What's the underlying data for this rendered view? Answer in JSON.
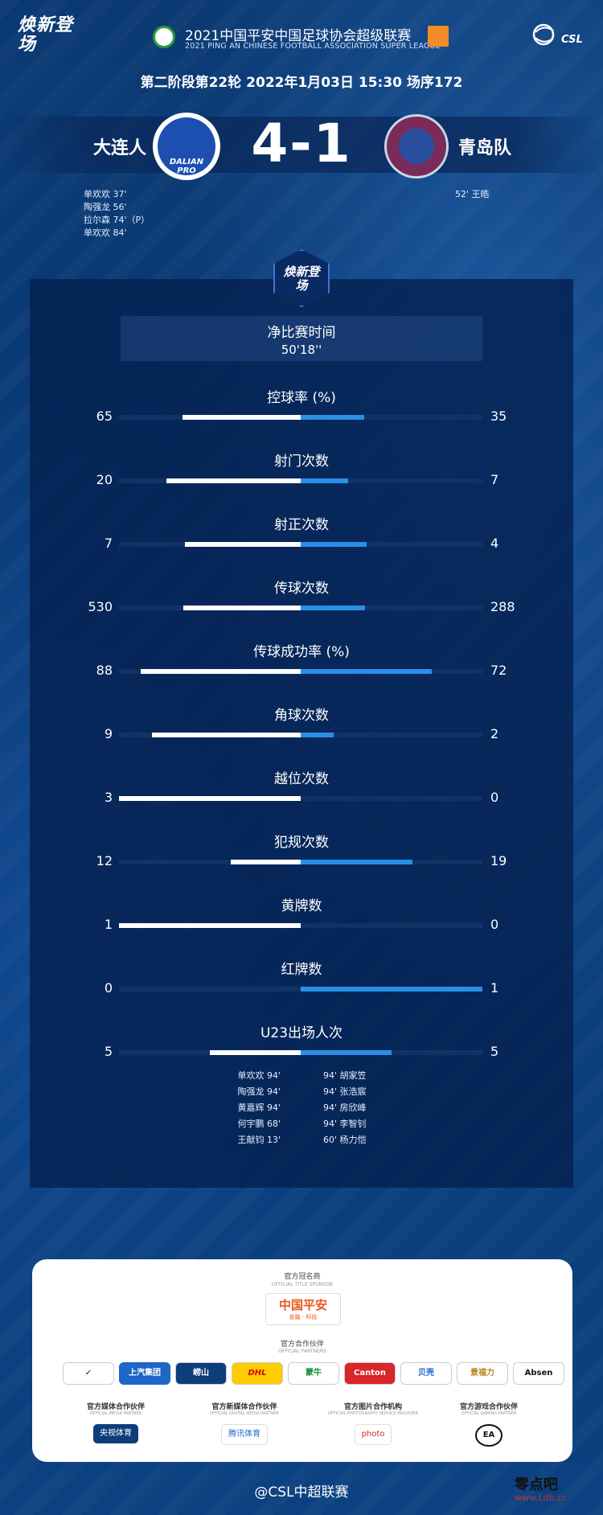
{
  "header": {
    "logo_left": "焕新登场",
    "league_title": "2021中国平安中国足球协会超级联赛",
    "league_subtitle": "2021 PING AN CHINESE FOOTBALL ASSOCIATION SUPER LEAGUE",
    "csl_logo_text": "CSL",
    "match_info": "第二阶段第22轮  2022年1月03日 15:30 场序172"
  },
  "match": {
    "home_team": "大连人",
    "away_team": "青岛队",
    "score": "4-1",
    "home_badge_text": "DALIAN PRO",
    "home_scorers": [
      "单欢欢  37'",
      "陶强龙  56'",
      "拉尔森  74'（P）",
      "单欢欢  84'"
    ],
    "away_scorers": [
      "52'  王皓"
    ]
  },
  "panel": {
    "logo_text": "焕新登场",
    "net_time_label": "净比赛时间",
    "net_time_value": "50'18''"
  },
  "stats": [
    {
      "label": "控球率 (%)",
      "home": "65",
      "away": "35",
      "home_frac": 0.65,
      "away_frac": 0.35
    },
    {
      "label": "射门次数",
      "home": "20",
      "away": "7",
      "home_frac": 0.741,
      "away_frac": 0.259
    },
    {
      "label": "射正次数",
      "home": "7",
      "away": "4",
      "home_frac": 0.636,
      "away_frac": 0.364
    },
    {
      "label": "传球次数",
      "home": "530",
      "away": "288",
      "home_frac": 0.648,
      "away_frac": 0.352
    },
    {
      "label": "传球成功率 (%)",
      "home": "88",
      "away": "72",
      "home_frac": 0.88,
      "away_frac": 0.72
    },
    {
      "label": "角球次数",
      "home": "9",
      "away": "2",
      "home_frac": 0.818,
      "away_frac": 0.182
    },
    {
      "label": "越位次数",
      "home": "3",
      "away": "0",
      "home_frac": 1.0,
      "away_frac": 0.0
    },
    {
      "label": "犯规次数",
      "home": "12",
      "away": "19",
      "home_frac": 0.387,
      "away_frac": 0.613
    },
    {
      "label": "黄牌数",
      "home": "1",
      "away": "0",
      "home_frac": 1.0,
      "away_frac": 0.0
    },
    {
      "label": "红牌数",
      "home": "0",
      "away": "1",
      "home_frac": 0.0,
      "away_frac": 1.0
    },
    {
      "label": "U23出场人次",
      "home": "5",
      "away": "5",
      "home_frac": 0.5,
      "away_frac": 0.5
    }
  ],
  "u23": {
    "home": [
      "单欢欢  94'",
      "陶强龙  94'",
      "黄嘉辉  94'",
      "何宇鹏  68'",
      "王献钧  13'"
    ],
    "away": [
      "94'  胡家笠",
      "94'  张浩宸",
      "94'  房欣峰",
      "94'  李智钊",
      "60'  杨力恺"
    ]
  },
  "partners": {
    "title_sponsor_label": "官方冠名商",
    "title_sponsor_sub": "OFFICIAL TITLE SPONSOR",
    "title_sponsor_name": "中国平安",
    "title_sponsor_tag": "金融 · 科技",
    "partners_label": "官方合作伙伴",
    "partners_sub": "OFFICIAL PARTNERS",
    "partner_chips": [
      "✓",
      "上汽集团",
      "崂山",
      "DHL",
      "蒙牛",
      "Canton",
      "贝壳",
      "景福力",
      "Absen"
    ],
    "groups": [
      {
        "title": "官方媒体合作伙伴",
        "sub": "OFFICIAL MEDIA PARTNER",
        "logo": "央视体育"
      },
      {
        "title": "官方新媒体合作伙伴",
        "sub": "OFFICIAL DIGITAL MEDIA PARTNER",
        "logo": "腾讯体育"
      },
      {
        "title": "官方图片合作机构",
        "sub": "OFFICIAL PHOTOGRAPHY SERVICE PROVIDER",
        "logo": "photo"
      },
      {
        "title": "官方游戏合作伙伴",
        "sub": "OFFICIAL GAMING PARTNER",
        "logo": "EA"
      }
    ]
  },
  "footer": {
    "text": "@CSL中超联赛",
    "watermark": "零点吧",
    "watermark_url": "www.Ldb.cc"
  },
  "colors": {
    "background": "#0a3b78",
    "away_bar": "#2b8fe6",
    "home_bar": "#ffffff",
    "sponsor_orange": "#e8591c"
  }
}
